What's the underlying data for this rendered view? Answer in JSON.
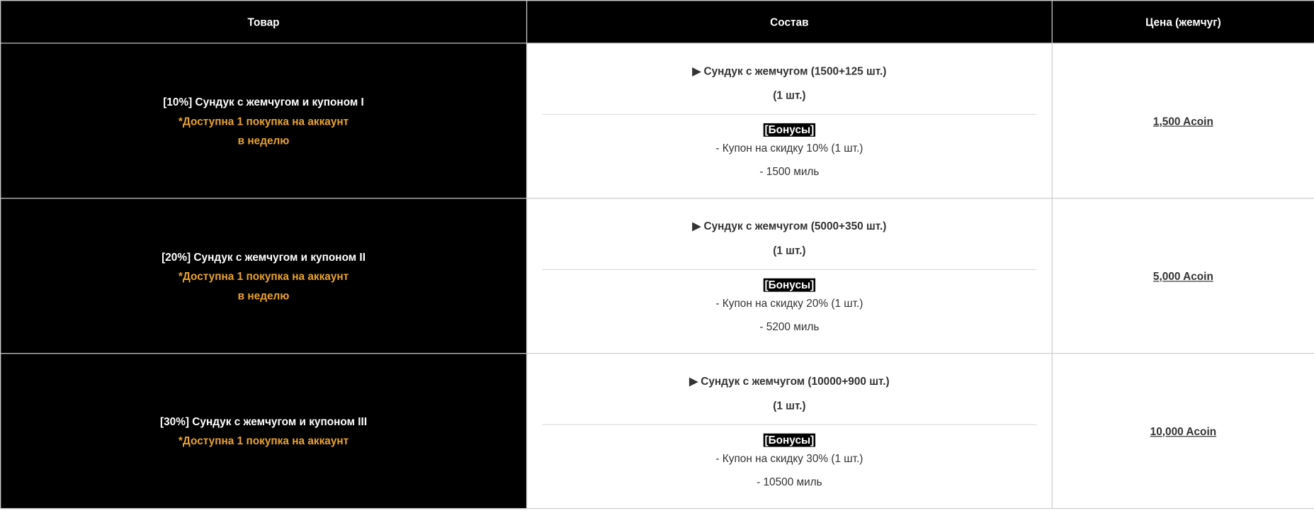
{
  "headers": {
    "product": "Товар",
    "contents": "Состав",
    "price": "Цена (жемчуг)"
  },
  "colors": {
    "header_bg": "#000000",
    "limit_text": "#e8a22f",
    "bonus_tag_bg": "#000000"
  },
  "rows": [
    {
      "name": "[10%] Сундук с жемчугом и купоном I",
      "limit_1": "*Доступна 1 покупка на аккаунт",
      "limit_2": "в неделю",
      "item": "▶ Сундук с жемчугом (1500+125 шт.)",
      "qty": "(1 шт.)",
      "bonus_tag": "[Бонусы]",
      "bonus_1": "- Купон на скидку 10% (1 шт.)",
      "bonus_2": "- 1500 миль",
      "price": "1,500 Acoin"
    },
    {
      "name": "[20%] Сундук с жемчугом и купоном II",
      "limit_1": "*Доступна 1 покупка на аккаунт",
      "limit_2": "в неделю",
      "item": "▶ Сундук с жемчугом (5000+350 шт.)",
      "qty": "(1 шт.)",
      "bonus_tag": "[Бонусы]",
      "bonus_1": "- Купон на скидку 20% (1 шт.)",
      "bonus_2": "- 5200 миль",
      "price": "5,000 Acoin"
    },
    {
      "name": "[30%] Сундук с жемчугом и купоном III",
      "limit_1": "*Доступна 1 покупка на аккаунт",
      "item": "▶ Сундук с жемчугом (10000+900 шт.)",
      "qty": "(1 шт.)",
      "bonus_tag": "[Бонусы]",
      "bonus_1": "- Купон на скидку 30% (1 шт.)",
      "bonus_2": "- 10500 миль",
      "price": "10,000 Acoin"
    }
  ]
}
